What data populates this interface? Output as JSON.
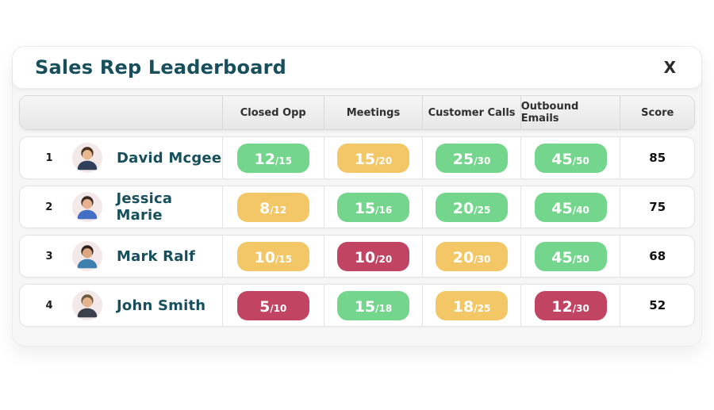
{
  "header": {
    "title": "Sales Rep Leaderboard",
    "close_label": "X"
  },
  "colors": {
    "title_teal": "#17505c",
    "pill_green": "#74d68c",
    "pill_yellow": "#f4c766",
    "pill_red": "#c24463"
  },
  "table": {
    "fraction_separator": "/",
    "columns": [
      "Closed Opp",
      "Meetings",
      "Customer Calls",
      "Outbound Emails",
      "Score"
    ],
    "rows": [
      {
        "rank": "1",
        "name": "David Mcgee",
        "metrics": [
          {
            "value": "12",
            "max": "15",
            "status": "green"
          },
          {
            "value": "15",
            "max": "20",
            "status": "yellow"
          },
          {
            "value": "25",
            "max": "30",
            "status": "green"
          },
          {
            "value": "45",
            "max": "50",
            "status": "green"
          }
        ],
        "score": "85"
      },
      {
        "rank": "2",
        "name": "Jessica Marie",
        "metrics": [
          {
            "value": "8",
            "max": "12",
            "status": "yellow"
          },
          {
            "value": "15",
            "max": "16",
            "status": "green"
          },
          {
            "value": "20",
            "max": "25",
            "status": "green"
          },
          {
            "value": "45",
            "max": "40",
            "status": "green"
          }
        ],
        "score": "75"
      },
      {
        "rank": "3",
        "name": "Mark Ralf",
        "metrics": [
          {
            "value": "10",
            "max": "15",
            "status": "yellow"
          },
          {
            "value": "10",
            "max": "20",
            "status": "red"
          },
          {
            "value": "20",
            "max": "30",
            "status": "yellow"
          },
          {
            "value": "45",
            "max": "50",
            "status": "green"
          }
        ],
        "score": "68"
      },
      {
        "rank": "4",
        "name": "John Smith",
        "metrics": [
          {
            "value": "5",
            "max": "10",
            "status": "red"
          },
          {
            "value": "15",
            "max": "18",
            "status": "green"
          },
          {
            "value": "18",
            "max": "25",
            "status": "yellow"
          },
          {
            "value": "12",
            "max": "30",
            "status": "red"
          }
        ],
        "score": "52"
      }
    ]
  }
}
